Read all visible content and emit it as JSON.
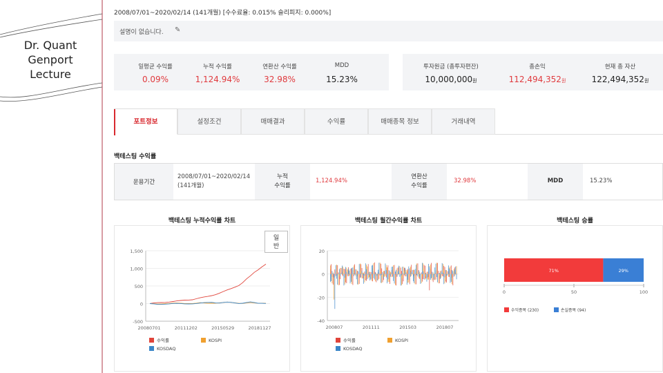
{
  "deco": {
    "title_lines": [
      "Dr. Quant",
      "Genport",
      "Lecture"
    ]
  },
  "header": {
    "period_line": "2008/07/01~2020/02/14 (141개월) [수수료율: 0.015% 슬리피지: 0.000%]",
    "description": "설명이 없습니다."
  },
  "summary_left": [
    {
      "label": "일평균 수익률",
      "value": "0.09%"
    },
    {
      "label": "누적 수익률",
      "value": "1,124.94%"
    },
    {
      "label": "연환산 수익률",
      "value": "32.98%"
    },
    {
      "label": "MDD",
      "value": "15.23%"
    }
  ],
  "summary_right": [
    {
      "label": "투자원금 (총투자편잔)",
      "value": "10,000,000",
      "unit": "원"
    },
    {
      "label": "총손익",
      "value": "112,494,352",
      "unit": "원"
    },
    {
      "label": "현재 총 자산",
      "value": "122,494,352",
      "unit": "원"
    }
  ],
  "tabs": [
    "포트정보",
    "설정조건",
    "매매결과",
    "수익률",
    "매매종목 정보",
    "거래내역"
  ],
  "backtest": {
    "title": "백테스팅 수익률",
    "period_label": "운용기간",
    "period_value_1": "2008/07/01~2020/02/14",
    "period_value_2": "(141개월)",
    "cum_label_1": "누적",
    "cum_label_2": "수익률",
    "cum_value": "1,124.94%",
    "ann_label_1": "연환산",
    "ann_label_2": "수익률",
    "ann_value": "32.98%",
    "mdd_label": "MDD",
    "mdd_value": "15.23%"
  },
  "chart_button": [
    "일",
    "반"
  ],
  "chart_data": [
    {
      "type": "line",
      "title": "백테스팅 누적수익률 차트",
      "x_ticks": [
        "20080701",
        "20111202",
        "20150529",
        "20181127"
      ],
      "y_ticks": [
        1500,
        1000,
        500,
        0,
        -500
      ],
      "ylim": [
        -500,
        1500
      ],
      "series": [
        {
          "name": "수익률",
          "color": "#e0443a",
          "values": [
            0,
            10,
            20,
            28,
            40,
            50,
            60,
            70,
            80,
            95,
            105,
            115,
            140,
            160,
            180,
            200,
            230,
            260,
            300,
            340,
            380,
            420,
            470,
            520,
            600,
            700,
            780,
            880,
            960,
            1050,
            1125
          ]
        },
        {
          "name": "KOSPI",
          "color": "#f0a030",
          "values": [
            0,
            -10,
            -20,
            -15,
            5,
            10,
            15,
            10,
            5,
            0,
            5,
            10,
            15,
            20,
            10,
            5,
            15,
            20,
            25,
            30,
            35,
            30,
            25,
            15,
            10,
            20,
            25,
            15,
            10,
            20,
            15
          ]
        },
        {
          "name": "KOSDAQ",
          "color": "#3a86c8",
          "values": [
            0,
            -15,
            -30,
            -25,
            -10,
            0,
            5,
            0,
            -5,
            -10,
            -5,
            0,
            5,
            10,
            20,
            30,
            40,
            25,
            20,
            30,
            35,
            30,
            20,
            10,
            15,
            30,
            40,
            25,
            10,
            15,
            10
          ]
        }
      ]
    },
    {
      "type": "bar",
      "title": "백테스팅 월간수익률 차트",
      "x_ticks": [
        "200807",
        "201111",
        "201503",
        "201807"
      ],
      "y_ticks": [
        20,
        0,
        -20,
        -40
      ],
      "ylim": [
        -40,
        20
      ],
      "series": [
        {
          "name": "수익률",
          "color": "#e0443a"
        },
        {
          "name": "KOSPI",
          "color": "#f0a030"
        },
        {
          "name": "KOSDAQ",
          "color": "#3a86c8"
        }
      ]
    },
    {
      "type": "bar",
      "title": "백테스팅 승률",
      "x_ticks": [
        "0",
        "50",
        "100"
      ],
      "xlim": [
        0,
        100
      ],
      "segments": [
        {
          "name": "수익종목 (230)",
          "value": 71,
          "label": "71%",
          "color": "#f23b3b"
        },
        {
          "name": "손실종목 (94)",
          "value": 29,
          "label": "29%",
          "color": "#3a7fd5"
        }
      ]
    }
  ]
}
